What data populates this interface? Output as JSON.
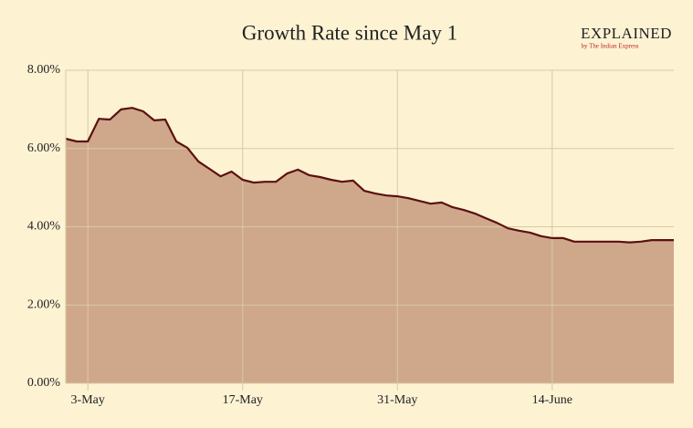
{
  "chart_data": {
    "type": "area",
    "title": "Growth Rate since May 1",
    "logo": {
      "text": "EXPLAINED",
      "subtext": "by The Indian Express"
    },
    "categories": [
      null,
      null,
      "3-May",
      null,
      null,
      null,
      null,
      null,
      null,
      null,
      null,
      null,
      null,
      null,
      null,
      null,
      "17-May",
      null,
      null,
      null,
      null,
      null,
      null,
      null,
      null,
      null,
      null,
      null,
      null,
      null,
      "31-May",
      null,
      null,
      null,
      null,
      null,
      null,
      null,
      null,
      null,
      null,
      null,
      null,
      null,
      "14-June",
      null,
      null,
      null,
      null,
      null,
      null,
      null,
      null,
      null,
      null,
      null
    ],
    "values": [
      6.25,
      6.18,
      6.18,
      6.76,
      6.74,
      7.0,
      7.04,
      6.95,
      6.72,
      6.74,
      6.18,
      6.02,
      5.67,
      5.48,
      5.29,
      5.41,
      5.2,
      5.13,
      5.15,
      5.15,
      5.36,
      5.46,
      5.32,
      5.27,
      5.2,
      5.15,
      5.18,
      4.92,
      4.85,
      4.8,
      4.78,
      4.73,
      4.66,
      4.59,
      4.62,
      4.5,
      4.43,
      4.34,
      4.22,
      4.1,
      3.96,
      3.9,
      3.85,
      3.76,
      3.71,
      3.71,
      3.62,
      3.62,
      3.62,
      3.62,
      3.62,
      3.6,
      3.62,
      3.66,
      3.66,
      3.66
    ],
    "color": "#cfa88b",
    "line_color": "#5c1010",
    "ylim": [
      0,
      8
    ],
    "yticks": [
      {
        "value": 0,
        "label": "0.00%"
      },
      {
        "value": 2,
        "label": "2.00%"
      },
      {
        "value": 4,
        "label": "4.00%"
      },
      {
        "value": 6,
        "label": "6.00%"
      },
      {
        "value": 8,
        "label": "8.00%"
      }
    ],
    "grid": true
  }
}
